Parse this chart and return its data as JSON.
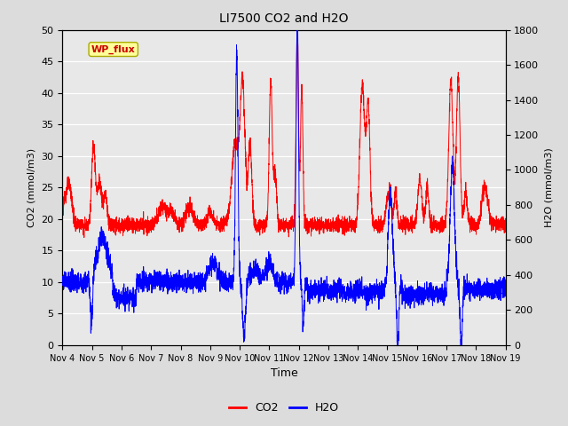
{
  "title": "LI7500 CO2 and H2O",
  "xlabel": "Time",
  "ylabel_left": "CO2 (mmol/m3)",
  "ylabel_right": "H2O (mmol/m3)",
  "ylim_left": [
    0,
    50
  ],
  "ylim_right": [
    0,
    1800
  ],
  "xlim": [
    0,
    15
  ],
  "x_tick_labels": [
    "Nov 4",
    "Nov 5",
    "Nov 6",
    "Nov 7",
    "Nov 8",
    "Nov 9",
    "Nov 10",
    "Nov 11",
    "Nov 12",
    "Nov 13",
    "Nov 14",
    "Nov 15",
    "Nov 16",
    "Nov 17",
    "Nov 18",
    "Nov 19"
  ],
  "co2_color": "#FF0000",
  "h2o_color": "#0000FF",
  "bg_color": "#DCDCDC",
  "plot_bg_color": "#E8E8E8",
  "annotation_text": "WP_flux",
  "annotation_color": "#CC0000",
  "annotation_bg": "#FFFF99",
  "legend_co2": "CO2",
  "legend_h2o": "H2O",
  "h2o_scale": 36,
  "figwidth": 6.4,
  "figheight": 4.8,
  "dpi": 100
}
